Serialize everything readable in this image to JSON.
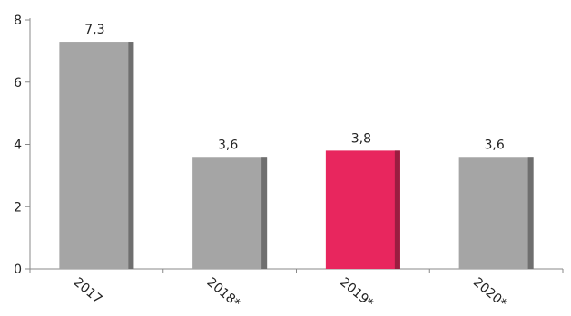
{
  "chart_data": {
    "type": "bar",
    "categories": [
      "2017",
      "2018*",
      "2019*",
      "2020*"
    ],
    "values": [
      7.3,
      3.6,
      3.8,
      3.6
    ],
    "value_labels": [
      "7,3",
      "3,6",
      "3,8",
      "3,6"
    ],
    "y_ticks": [
      "0",
      "2",
      "4",
      "6",
      "8"
    ],
    "ylim": [
      0,
      8
    ],
    "grid": false,
    "highlight_index": 2,
    "colors": {
      "bar": "#a5a5a5",
      "bar_side": "#6f6f6f",
      "highlight": "#e8265e",
      "highlight_side": "#9a1d40",
      "axis": "#888888"
    }
  }
}
